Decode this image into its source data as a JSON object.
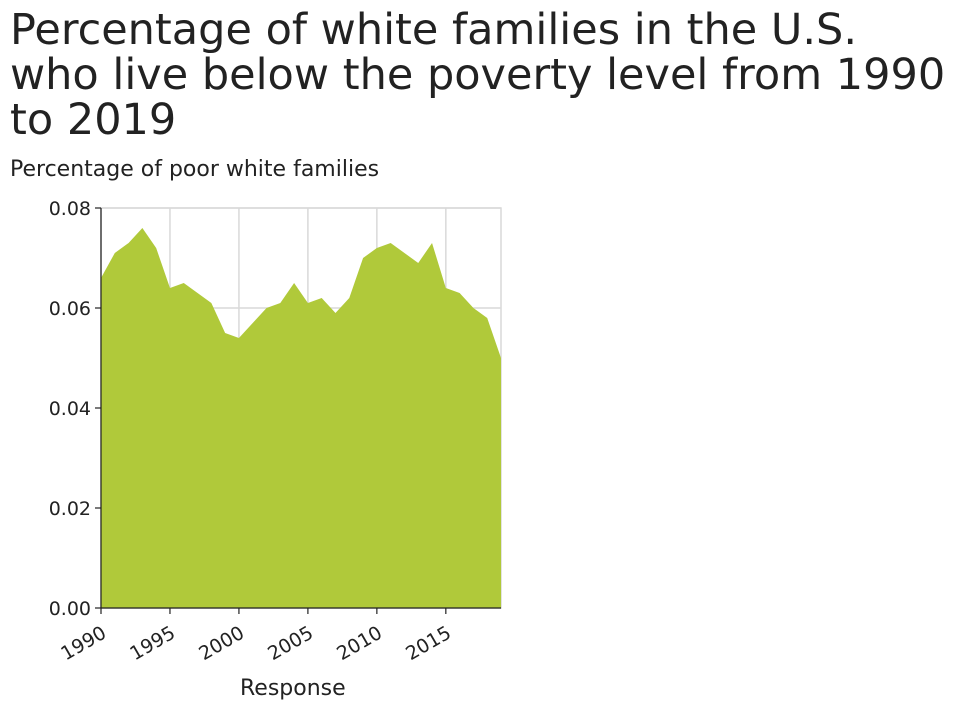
{
  "chart_data": {
    "type": "area",
    "title_lines": [
      "Percentage of white families in the U.S.",
      "who live below the poverty level from 1990",
      "to 2019"
    ],
    "ylabel": "Percentage of poor white families",
    "xlabel": "Response",
    "xlim": [
      1990,
      2019
    ],
    "ylim": [
      0,
      0.08
    ],
    "x_ticks": [
      1990,
      1995,
      2000,
      2005,
      2010,
      2015
    ],
    "y_ticks": [
      "0.00",
      "0.02",
      "0.04",
      "0.06",
      "0.08"
    ],
    "grid": true,
    "fill_color": "#b0c93a",
    "series": [
      {
        "x": [
          1990,
          1991,
          1992,
          1993,
          1994,
          1995,
          1996,
          1997,
          1998,
          1999,
          2000,
          2001,
          2002,
          2003,
          2004,
          2005,
          2006,
          2007,
          2008,
          2009,
          2010,
          2011,
          2012,
          2013,
          2014,
          2015,
          2016,
          2017,
          2018,
          2019
        ],
        "values": [
          0.066,
          0.071,
          0.073,
          0.076,
          0.072,
          0.064,
          0.065,
          0.063,
          0.061,
          0.055,
          0.054,
          0.057,
          0.06,
          0.061,
          0.065,
          0.061,
          0.062,
          0.059,
          0.062,
          0.07,
          0.072,
          0.073,
          0.071,
          0.069,
          0.073,
          0.064,
          0.063,
          0.06,
          0.058,
          0.05
        ]
      }
    ]
  }
}
